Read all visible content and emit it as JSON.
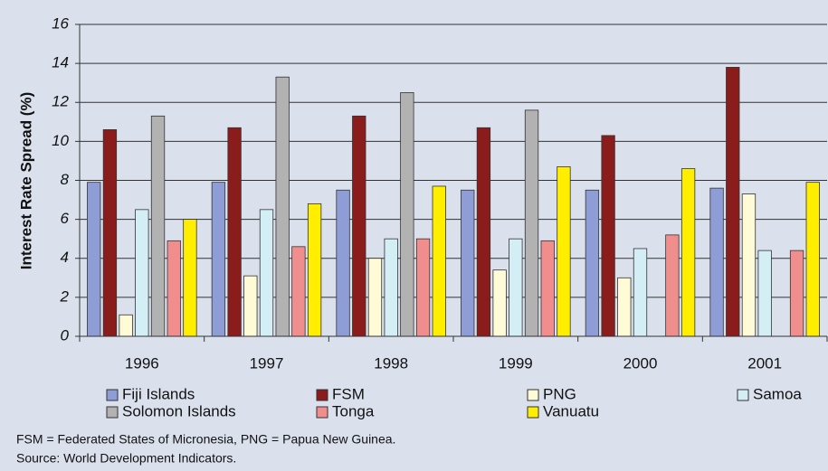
{
  "chart_data": {
    "type": "bar",
    "y_label": "Interest Rate Spread (%)",
    "categories": [
      "1996",
      "1997",
      "1998",
      "1999",
      "2000",
      "2001"
    ],
    "series": [
      {
        "name": "Fiji Islands",
        "color": "#8f9dd6",
        "values": [
          7.9,
          7.9,
          7.5,
          7.5,
          7.5,
          7.6
        ]
      },
      {
        "name": "FSM",
        "color": "#8b1c1c",
        "values": [
          10.6,
          10.7,
          11.3,
          10.7,
          10.3,
          13.8
        ]
      },
      {
        "name": "PNG",
        "color": "#fffbd6",
        "values": [
          1.1,
          3.1,
          4.0,
          3.4,
          3.0,
          7.3
        ]
      },
      {
        "name": "Samoa",
        "color": "#d4eef6",
        "values": [
          6.5,
          6.5,
          5.0,
          5.0,
          4.5,
          4.4
        ]
      },
      {
        "name": "Solomon Islands",
        "color": "#b2b2b2",
        "values": [
          11.3,
          13.3,
          12.5,
          11.6,
          null,
          null
        ]
      },
      {
        "name": "Tonga",
        "color": "#f08e8e",
        "values": [
          4.9,
          4.6,
          5.0,
          4.9,
          5.2,
          4.4
        ]
      },
      {
        "name": "Vanuatu",
        "color": "#ffee00",
        "values": [
          6.0,
          6.8,
          7.7,
          8.7,
          8.6,
          7.9
        ]
      }
    ],
    "ylim": [
      0,
      16
    ],
    "yticks": [
      0,
      2,
      4,
      6,
      8,
      10,
      12,
      14,
      16
    ],
    "grid": true,
    "notes": [
      "FSM = Federated States of Micronesia, PNG = Papua New Guinea.",
      "Source: World Development Indicators."
    ]
  }
}
